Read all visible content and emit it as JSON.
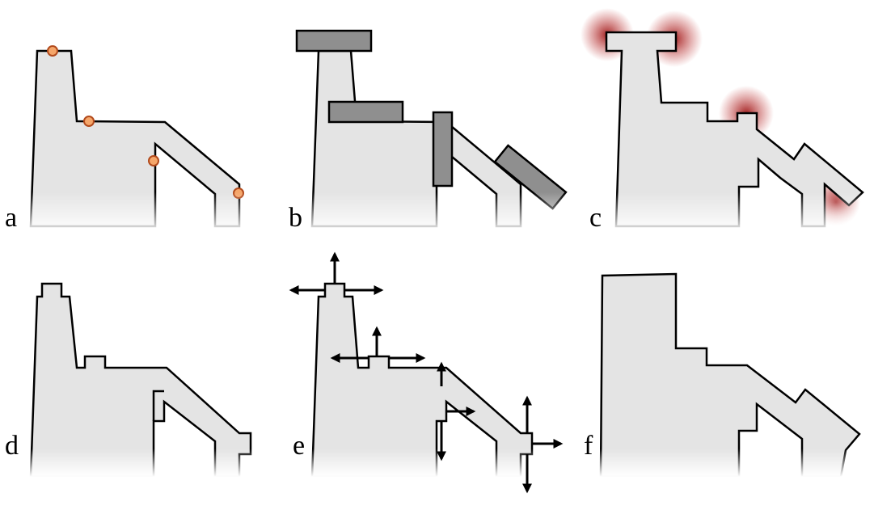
{
  "panels": {
    "a": {
      "label": "a"
    },
    "b": {
      "label": "b"
    },
    "c": {
      "label": "c"
    },
    "d": {
      "label": "d"
    },
    "e": {
      "label": "e"
    },
    "f": {
      "label": "f"
    }
  },
  "colors": {
    "shape_fill": "#e4e4e4",
    "block_fill": "#8f8f8f",
    "marker_fill": "#f5a66a",
    "glow": "#9b0f0f"
  }
}
